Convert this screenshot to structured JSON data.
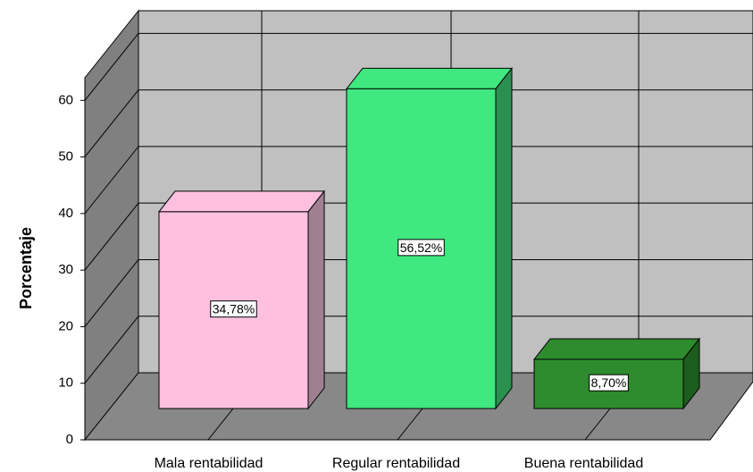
{
  "chart_data": {
    "type": "bar3d",
    "y_label": "Porcentaje",
    "categories": [
      "Mala rentabilidad",
      "Regular rentabilidad",
      "Buena rentabilidad"
    ],
    "values": [
      34.78,
      56.52,
      8.7
    ],
    "value_labels": [
      "34,78%",
      "56,52%",
      "8,70%"
    ],
    "colors": [
      "#ffc0e0",
      "#40e880",
      "#2e8b2e"
    ],
    "side_colors": [
      "#a08090",
      "#2a9050",
      "#1c5c1c"
    ],
    "ylim": [
      0,
      64
    ],
    "yticks": [
      0,
      10,
      20,
      30,
      40,
      50,
      60
    ],
    "grid": true
  }
}
